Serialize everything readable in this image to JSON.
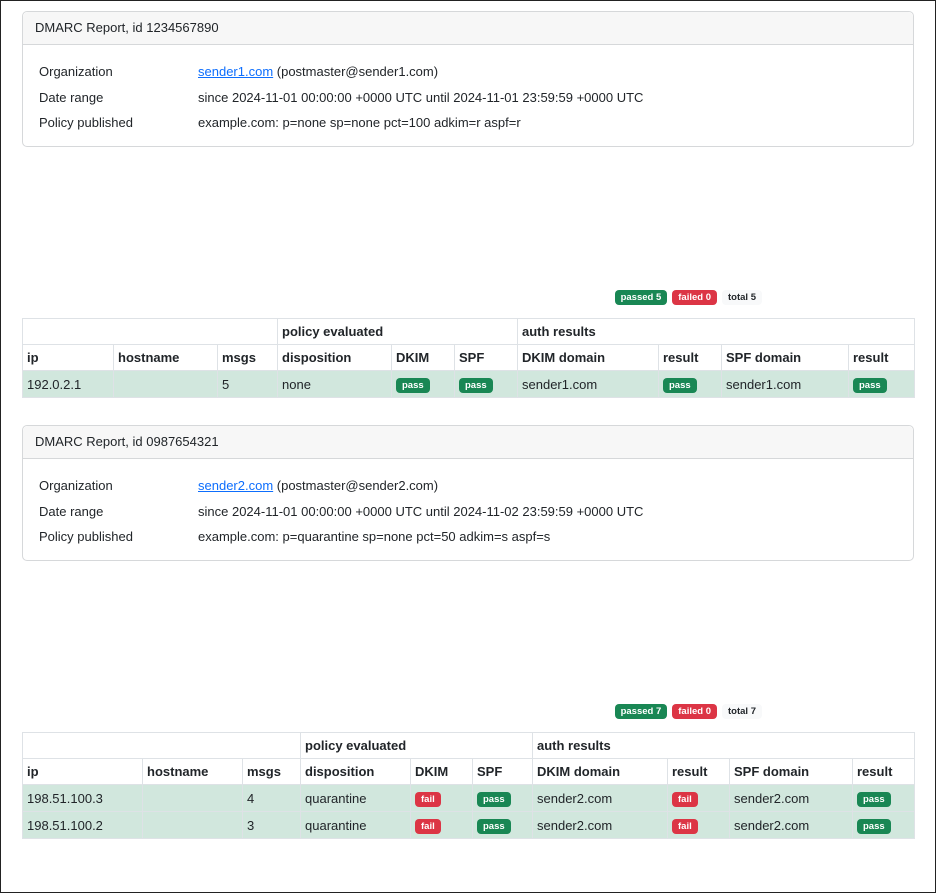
{
  "reports": [
    {
      "header": "DMARC Report, id 1234567890",
      "org_link": "sender1.com",
      "org_email": " (postmaster@sender1.com)",
      "org_label": "Organization",
      "date_label": "Date range",
      "date_value": "since 2024-11-01 00:00:00 +0000 UTC until 2024-11-01 23:59:59 +0000 UTC",
      "policy_label": "Policy published",
      "policy_value": "example.com: p=none sp=none pct=100 adkim=r aspf=r",
      "summary": {
        "passed": "passed 5",
        "failed": "failed 0",
        "total": "total 5"
      },
      "table": {
        "group_policy": "policy evaluated",
        "group_auth": "auth results",
        "columns": [
          "ip",
          "hostname",
          "msgs",
          "disposition",
          "DKIM",
          "SPF",
          "DKIM domain",
          "result",
          "SPF domain",
          "result"
        ],
        "rows": [
          {
            "ip": "192.0.2.1",
            "hostname": "",
            "msgs": "5",
            "disposition": "none",
            "dkim": "pass",
            "spf": "pass",
            "dkim_domain": "sender1.com",
            "dkim_result": "pass",
            "spf_domain": "sender1.com",
            "spf_result": "pass"
          }
        ]
      }
    },
    {
      "header": "DMARC Report, id 0987654321",
      "org_link": "sender2.com",
      "org_email": " (postmaster@sender2.com)",
      "org_label": "Organization",
      "date_label": "Date range",
      "date_value": "since 2024-11-01 00:00:00 +0000 UTC until 2024-11-02 23:59:59 +0000 UTC",
      "policy_label": "Policy published",
      "policy_value": "example.com: p=quarantine sp=none pct=50 adkim=s aspf=s",
      "summary": {
        "passed": "passed 7",
        "failed": "failed 0",
        "total": "total 7"
      },
      "table": {
        "group_policy": "policy evaluated",
        "group_auth": "auth results",
        "columns": [
          "ip",
          "hostname",
          "msgs",
          "disposition",
          "DKIM",
          "SPF",
          "DKIM domain",
          "result",
          "SPF domain",
          "result"
        ],
        "rows": [
          {
            "ip": "198.51.100.3",
            "hostname": "",
            "msgs": "4",
            "disposition": "quarantine",
            "dkim": "fail",
            "spf": "pass",
            "dkim_domain": "sender2.com",
            "dkim_result": "fail",
            "spf_domain": "sender2.com",
            "spf_result": "pass"
          },
          {
            "ip": "198.51.100.2",
            "hostname": "",
            "msgs": "3",
            "disposition": "quarantine",
            "dkim": "fail",
            "spf": "pass",
            "dkim_domain": "sender2.com",
            "dkim_result": "fail",
            "spf_domain": "sender2.com",
            "spf_result": "pass"
          }
        ]
      }
    }
  ],
  "colors": {
    "pass": "#198754",
    "fail": "#dc3545",
    "row_bg": "#d1e7dd"
  }
}
